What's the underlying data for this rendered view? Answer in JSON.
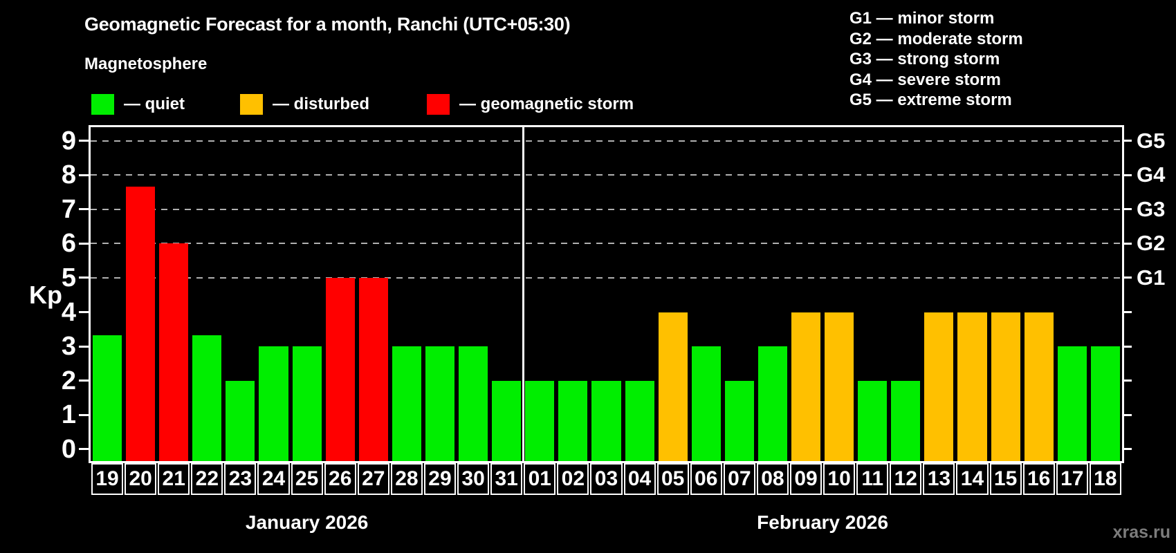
{
  "title": "Geomagnetic Forecast for a month, Ranchi (UTC+05:30)",
  "subtitle": "Magnetosphere",
  "legend": {
    "items": [
      {
        "id": "quiet",
        "label": "— quiet",
        "color": "#00ee00"
      },
      {
        "id": "disturbed",
        "label": "— disturbed",
        "color": "#ffc000"
      },
      {
        "id": "storm",
        "label": "— geomagnetic storm",
        "color": "#ff0000"
      }
    ]
  },
  "g_scale_legend": {
    "items": [
      "G1 — minor storm",
      "G2 — moderate storm",
      "G3 — strong storm",
      "G4 — severe storm",
      "G5 — extreme storm"
    ]
  },
  "watermark": "xras.ru",
  "chart_data": {
    "type": "bar",
    "title": "Geomagnetic Forecast for a month, Ranchi (UTC+05:30)",
    "ylabel": "Kp",
    "ylim": [
      0,
      9
    ],
    "yticks": [
      0,
      1,
      2,
      3,
      4,
      5,
      6,
      7,
      8,
      9
    ],
    "gridlines_at": [
      5,
      6,
      7,
      8,
      9
    ],
    "grid_style": "dashed",
    "legend_position": "top",
    "right_axis": [
      {
        "value": 5,
        "label": "G1"
      },
      {
        "value": 6,
        "label": "G2"
      },
      {
        "value": 7,
        "label": "G3"
      },
      {
        "value": 8,
        "label": "G4"
      },
      {
        "value": 9,
        "label": "G5"
      }
    ],
    "status_colors": {
      "quiet": "#00ee00",
      "disturbed": "#ffc000",
      "storm": "#ff0000"
    },
    "months": [
      {
        "label": "January 2026",
        "days": [
          {
            "day": "19",
            "kp": 3.33,
            "status": "quiet"
          },
          {
            "day": "20",
            "kp": 7.67,
            "status": "storm"
          },
          {
            "day": "21",
            "kp": 6,
            "status": "storm"
          },
          {
            "day": "22",
            "kp": 3.33,
            "status": "quiet"
          },
          {
            "day": "23",
            "kp": 2,
            "status": "quiet"
          },
          {
            "day": "24",
            "kp": 3,
            "status": "quiet"
          },
          {
            "day": "25",
            "kp": 3,
            "status": "quiet"
          },
          {
            "day": "26",
            "kp": 5,
            "status": "storm"
          },
          {
            "day": "27",
            "kp": 5,
            "status": "storm"
          },
          {
            "day": "28",
            "kp": 3,
            "status": "quiet"
          },
          {
            "day": "29",
            "kp": 3,
            "status": "quiet"
          },
          {
            "day": "30",
            "kp": 3,
            "status": "quiet"
          },
          {
            "day": "31",
            "kp": 2,
            "status": "quiet"
          }
        ]
      },
      {
        "label": "February 2026",
        "days": [
          {
            "day": "01",
            "kp": 2,
            "status": "quiet"
          },
          {
            "day": "02",
            "kp": 2,
            "status": "quiet"
          },
          {
            "day": "03",
            "kp": 2,
            "status": "quiet"
          },
          {
            "day": "04",
            "kp": 2,
            "status": "quiet"
          },
          {
            "day": "05",
            "kp": 4,
            "status": "disturbed"
          },
          {
            "day": "06",
            "kp": 3,
            "status": "quiet"
          },
          {
            "day": "07",
            "kp": 2,
            "status": "quiet"
          },
          {
            "day": "08",
            "kp": 3,
            "status": "quiet"
          },
          {
            "day": "09",
            "kp": 4,
            "status": "disturbed"
          },
          {
            "day": "10",
            "kp": 4,
            "status": "disturbed"
          },
          {
            "day": "11",
            "kp": 2,
            "status": "quiet"
          },
          {
            "day": "12",
            "kp": 2,
            "status": "quiet"
          },
          {
            "day": "13",
            "kp": 4,
            "status": "disturbed"
          },
          {
            "day": "14",
            "kp": 4,
            "status": "disturbed"
          },
          {
            "day": "15",
            "kp": 4,
            "status": "disturbed"
          },
          {
            "day": "16",
            "kp": 4,
            "status": "disturbed"
          },
          {
            "day": "17",
            "kp": 3,
            "status": "quiet"
          },
          {
            "day": "18",
            "kp": 3,
            "status": "quiet"
          }
        ]
      }
    ]
  }
}
